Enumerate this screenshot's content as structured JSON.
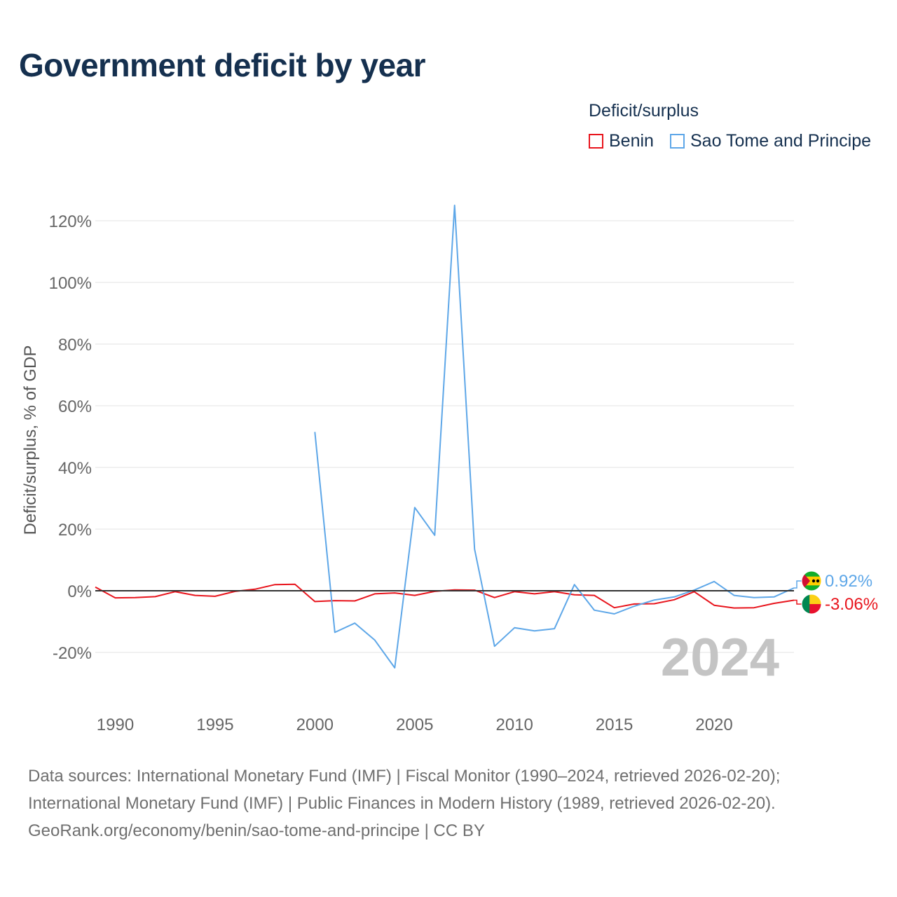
{
  "title": "Government deficit by year",
  "legend": {
    "title": "Deficit/surplus",
    "items": [
      {
        "label": "Benin",
        "color": "#e8151d"
      },
      {
        "label": "Sao Tome and Principe",
        "color": "#5ea7e8"
      }
    ]
  },
  "footer": {
    "line1": "Data sources: International Monetary Fund (IMF) | Fiscal Monitor (1990–2024, retrieved 2026-02-20);",
    "line2": "International Monetary Fund (IMF) | Public Finances in Modern History (1989, retrieved 2026-02-20).",
    "line3": "GeoRank.org/economy/benin/sao-tome-and-principe | CC BY"
  },
  "chart_data": {
    "type": "line",
    "title": "Government deficit by year",
    "xlabel": "",
    "ylabel": "Deficit/surplus, % of GDP",
    "year_label": "2024",
    "xlim": [
      1989,
      2024
    ],
    "ylim": [
      -30,
      130
    ],
    "x_ticks": [
      1990,
      1995,
      2000,
      2005,
      2010,
      2015,
      2020
    ],
    "y_ticks": [
      -20,
      0,
      20,
      40,
      60,
      80,
      100,
      120
    ],
    "y_tick_labels": [
      "-20%",
      "0%",
      "20%",
      "40%",
      "60%",
      "80%",
      "100%",
      "120%"
    ],
    "grid": true,
    "series": [
      {
        "name": "Benin",
        "color": "#e8151d",
        "end_label": "-3.06%",
        "x": [
          1989,
          1990,
          1991,
          1992,
          1993,
          1994,
          1995,
          1996,
          1997,
          1998,
          1999,
          2000,
          2001,
          2002,
          2003,
          2004,
          2005,
          2006,
          2007,
          2008,
          2009,
          2010,
          2011,
          2012,
          2013,
          2014,
          2015,
          2016,
          2017,
          2018,
          2019,
          2020,
          2021,
          2022,
          2023,
          2024
        ],
        "values": [
          1.2,
          -2.3,
          -2.2,
          -1.9,
          -0.3,
          -1.5,
          -1.8,
          -0.2,
          0.5,
          2.0,
          2.1,
          -3.5,
          -3.2,
          -3.3,
          -1.0,
          -0.7,
          -1.5,
          -0.2,
          0.3,
          0.2,
          -2.2,
          -0.3,
          -1.0,
          -0.3,
          -1.3,
          -1.5,
          -5.5,
          -4.3,
          -4.2,
          -2.9,
          -0.3,
          -4.7,
          -5.6,
          -5.5,
          -4.1,
          -3.06
        ]
      },
      {
        "name": "Sao Tome and Principe",
        "color": "#5ea7e8",
        "end_label": "0.92%",
        "x": [
          2000,
          2001,
          2002,
          2003,
          2004,
          2005,
          2006,
          2007,
          2008,
          2009,
          2010,
          2011,
          2012,
          2013,
          2014,
          2015,
          2016,
          2017,
          2018,
          2019,
          2020,
          2021,
          2022,
          2023,
          2024
        ],
        "values": [
          51.5,
          -13.5,
          -10.5,
          -16.0,
          -25.0,
          27.0,
          18.0,
          125.0,
          13.5,
          -18.0,
          -12.0,
          -13.0,
          -12.3,
          2.0,
          -6.3,
          -7.5,
          -5.0,
          -3.0,
          -2.0,
          0.2,
          3.0,
          -1.5,
          -2.2,
          -2.0,
          0.92
        ]
      }
    ]
  }
}
